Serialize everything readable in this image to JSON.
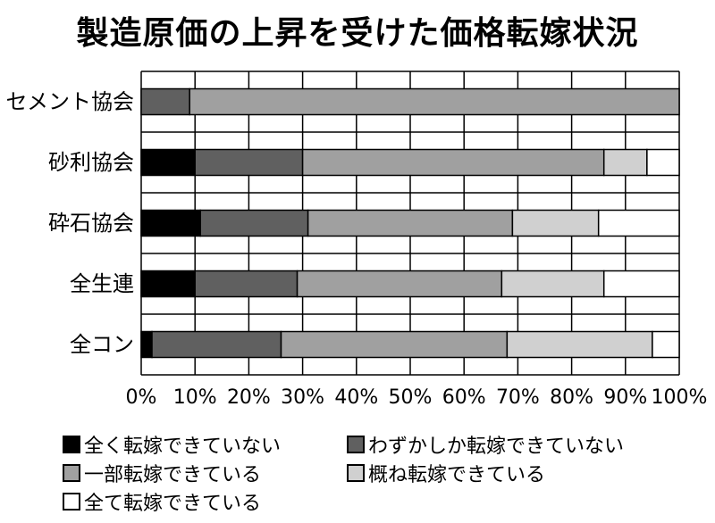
{
  "chart_data": {
    "type": "bar",
    "orientation": "horizontal",
    "stacked": true,
    "title": "製造原価の上昇を受けた価格転嫁状況",
    "categories": [
      "セメント協会",
      "砂利協会",
      "砕石協会",
      "全生連",
      "全コン"
    ],
    "series": [
      {
        "name": "全く転嫁できていない",
        "color": "#000000",
        "values": [
          0,
          10,
          11,
          10,
          2
        ]
      },
      {
        "name": "わずかしか転嫁できていない",
        "color": "#606060",
        "values": [
          9,
          20,
          20,
          19,
          24
        ]
      },
      {
        "name": "一部転嫁できている",
        "color": "#a0a0a0",
        "values": [
          91,
          56,
          38,
          38,
          42
        ]
      },
      {
        "name": "概ね転嫁できている",
        "color": "#d0d0d0",
        "values": [
          0,
          8,
          16,
          19,
          27
        ]
      },
      {
        "name": "全て転嫁できている",
        "color": "#ffffff",
        "values": [
          0,
          6,
          15,
          14,
          5
        ]
      }
    ],
    "xlim": [
      0,
      100
    ],
    "xticks": [
      "0%",
      "10%",
      "20%",
      "30%",
      "40%",
      "50%",
      "60%",
      "70%",
      "80%",
      "90%",
      "100%"
    ],
    "grid": true,
    "legend_position": "bottom"
  }
}
